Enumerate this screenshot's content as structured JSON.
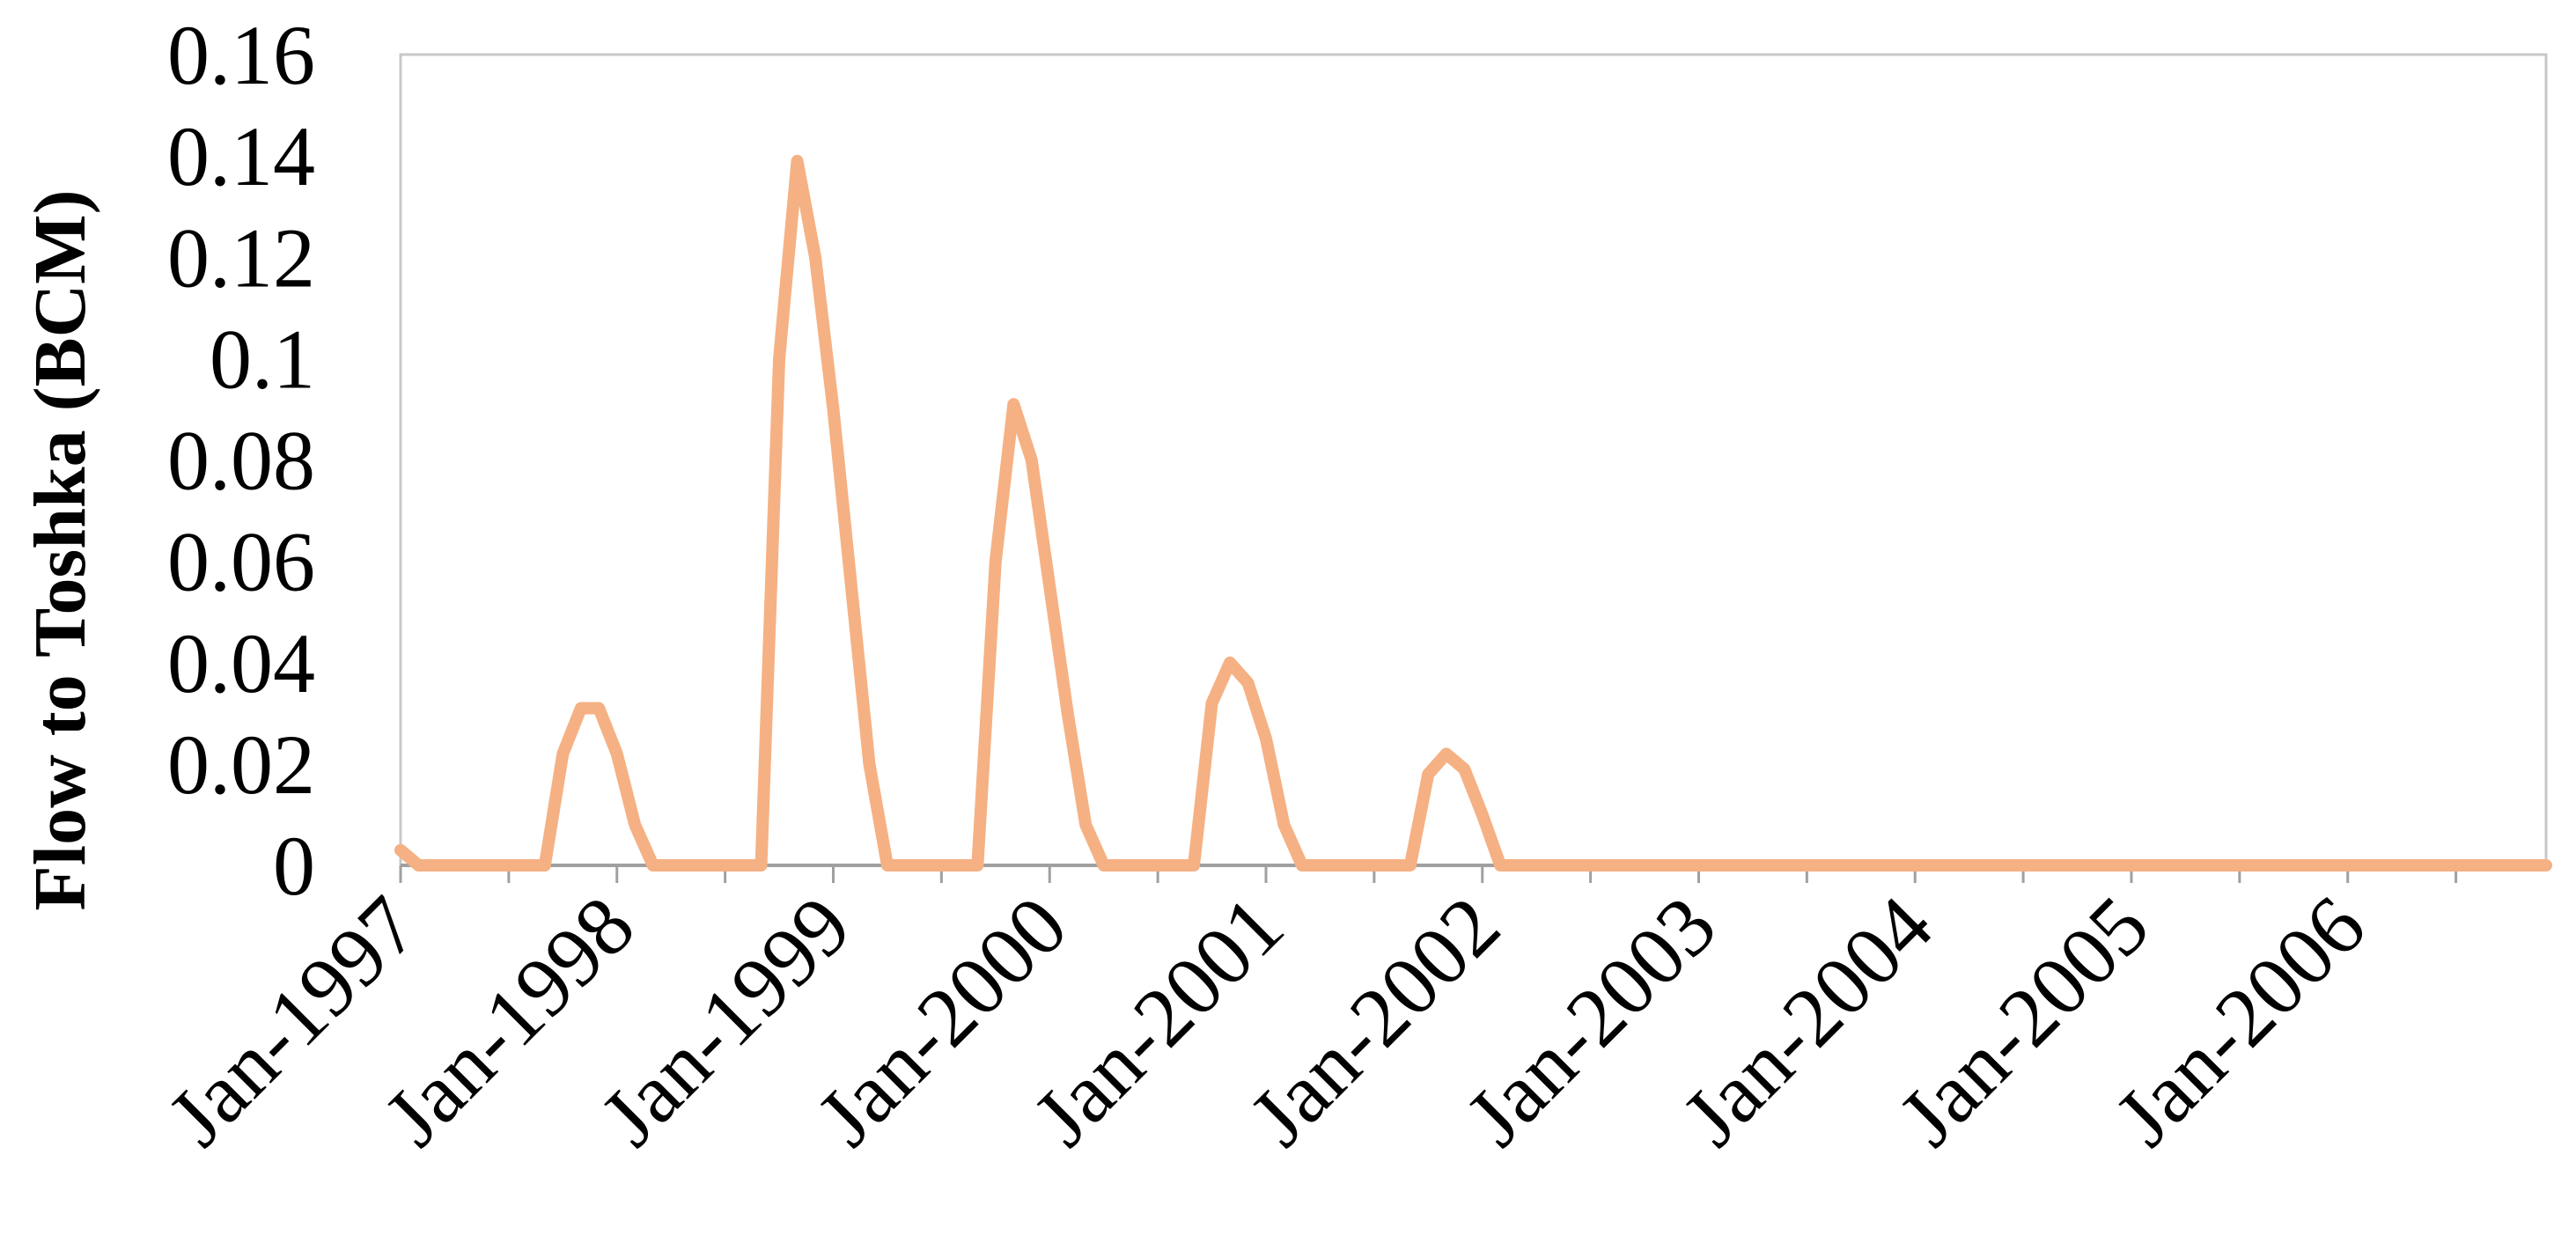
{
  "chart_data": {
    "type": "line",
    "ylabel": "Flow to Toshka (BCM)",
    "categories": [
      "Jan-1997",
      null,
      null,
      null,
      null,
      null,
      null,
      null,
      null,
      null,
      null,
      null,
      "Jan-1998",
      null,
      null,
      null,
      null,
      null,
      null,
      null,
      null,
      null,
      null,
      null,
      "Jan-1999",
      null,
      null,
      null,
      null,
      null,
      null,
      null,
      null,
      null,
      null,
      null,
      "Jan-2000",
      null,
      null,
      null,
      null,
      null,
      null,
      null,
      null,
      null,
      null,
      null,
      "Jan-2001",
      null,
      null,
      null,
      null,
      null,
      null,
      null,
      null,
      null,
      null,
      null,
      "Jan-2002",
      null,
      null,
      null,
      null,
      null,
      null,
      null,
      null,
      null,
      null,
      null,
      "Jan-2003",
      null,
      null,
      null,
      null,
      null,
      null,
      null,
      null,
      null,
      null,
      null,
      "Jan-2004",
      null,
      null,
      null,
      null,
      null,
      null,
      null,
      null,
      null,
      null,
      null,
      "Jan-2005",
      null,
      null,
      null,
      null,
      null,
      null,
      null,
      null,
      null,
      null,
      null,
      "Jan-2006",
      null,
      null,
      null,
      null,
      null,
      null,
      null,
      null,
      null,
      null,
      null
    ],
    "values": [
      0.003,
      0,
      0,
      0,
      0,
      0,
      0,
      0,
      0,
      0.022,
      0.031,
      0.031,
      0.022,
      0.008,
      0,
      0,
      0,
      0,
      0,
      0,
      0,
      0.1,
      0.139,
      0.12,
      0.09,
      0.055,
      0.02,
      0,
      0,
      0,
      0,
      0,
      0,
      0.06,
      0.091,
      0.08,
      0.055,
      0.03,
      0.008,
      0,
      0,
      0,
      0,
      0,
      0,
      0.032,
      0.04,
      0.036,
      0.025,
      0.008,
      0,
      0,
      0,
      0,
      0,
      0,
      0,
      0.018,
      0.022,
      0.019,
      0.01,
      0,
      0,
      0,
      0,
      0,
      0,
      0,
      0,
      0,
      0,
      0,
      0,
      0,
      0,
      0,
      0,
      0,
      0,
      0,
      0,
      0,
      0,
      0,
      0,
      0,
      0,
      0,
      0,
      0,
      0,
      0,
      0,
      0,
      0,
      0,
      0,
      0,
      0,
      0,
      0,
      0,
      0,
      0,
      0,
      0,
      0,
      0,
      0,
      0,
      0,
      0,
      0,
      0,
      0,
      0,
      0,
      0,
      0,
      0
    ],
    "color": "#f5b183",
    "ylim": [
      0,
      0.16
    ],
    "yticks": [
      0,
      0.02,
      0.04,
      0.06,
      0.08,
      0.1,
      0.12,
      0.14,
      0.16
    ],
    "grid": false
  }
}
